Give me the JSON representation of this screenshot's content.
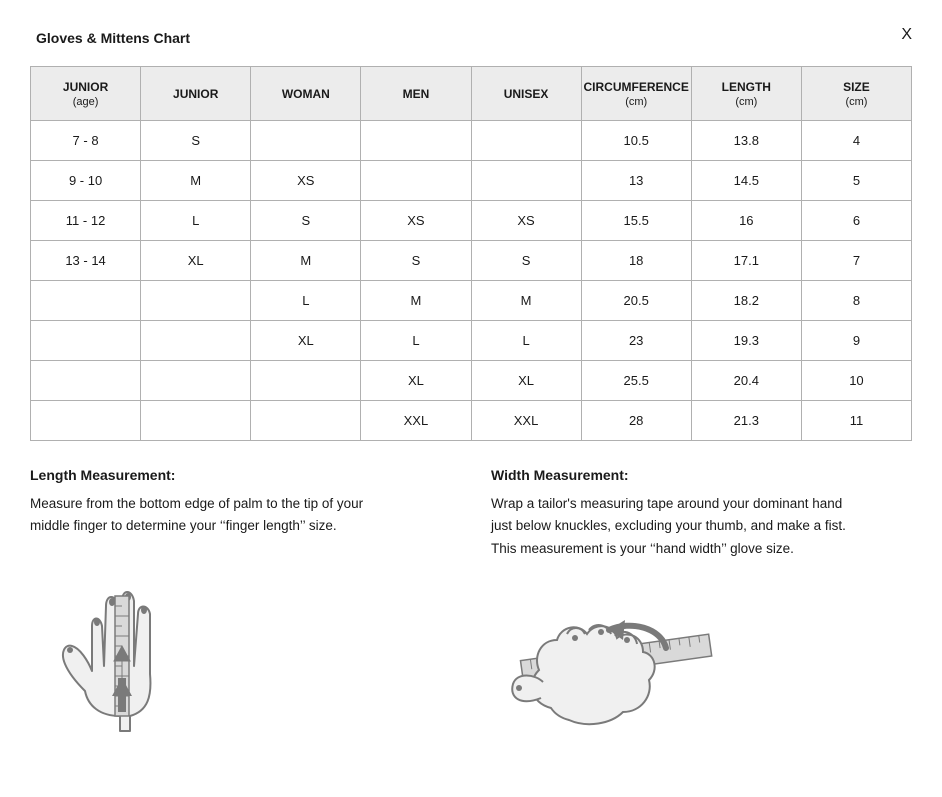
{
  "title": "Gloves & Mittens Chart",
  "close_label": "X",
  "table": {
    "columns": [
      {
        "label": "JUNIOR",
        "sub": "(age)"
      },
      {
        "label": "JUNIOR",
        "sub": ""
      },
      {
        "label": "WOMAN",
        "sub": ""
      },
      {
        "label": "MEN",
        "sub": ""
      },
      {
        "label": "UNISEX",
        "sub": ""
      },
      {
        "label": "CIRCUMFERENCE",
        "sub": "(cm)"
      },
      {
        "label": "LENGTH",
        "sub": "(cm)"
      },
      {
        "label": "SIZE",
        "sub": "(cm)"
      }
    ],
    "rows": [
      [
        "7 - 8",
        "S",
        "",
        "",
        "",
        "10.5",
        "13.8",
        "4"
      ],
      [
        "9 - 10",
        "M",
        "XS",
        "",
        "",
        "13",
        "14.5",
        "5"
      ],
      [
        "11 - 12",
        "L",
        "S",
        "XS",
        "XS",
        "15.5",
        "16",
        "6"
      ],
      [
        "13 - 14",
        "XL",
        "M",
        "S",
        "S",
        "18",
        "17.1",
        "7"
      ],
      [
        "",
        "",
        "L",
        "M",
        "M",
        "20.5",
        "18.2",
        "8"
      ],
      [
        "",
        "",
        "XL",
        "L",
        "L",
        "23",
        "19.3",
        "9"
      ],
      [
        "",
        "",
        "",
        "XL",
        "XL",
        "25.5",
        "20.4",
        "10"
      ],
      [
        "",
        "",
        "",
        "XXL",
        "XXL",
        "28",
        "21.3",
        "11"
      ]
    ]
  },
  "length_section": {
    "heading": "Length Measurement:",
    "body": "Measure from the bottom edge of palm to the tip of your middle finger to determine your ‘‘finger length’’ size."
  },
  "width_section": {
    "heading": "Width Measurement:",
    "body": "Wrap a tailor's measuring tape around your dominant hand just below knuckles, excluding your thumb, and make a fist. This measurement is your ‘‘hand width’’ glove size."
  },
  "style": {
    "border_color": "#b0b0b0",
    "header_bg": "#ececec",
    "text_color": "#1a1a1a",
    "background": "#ffffff",
    "illustration_stroke": "#7a7a7a",
    "illustration_fill": "#f0f0f0",
    "ruler_fill": "#d9d9d9"
  }
}
